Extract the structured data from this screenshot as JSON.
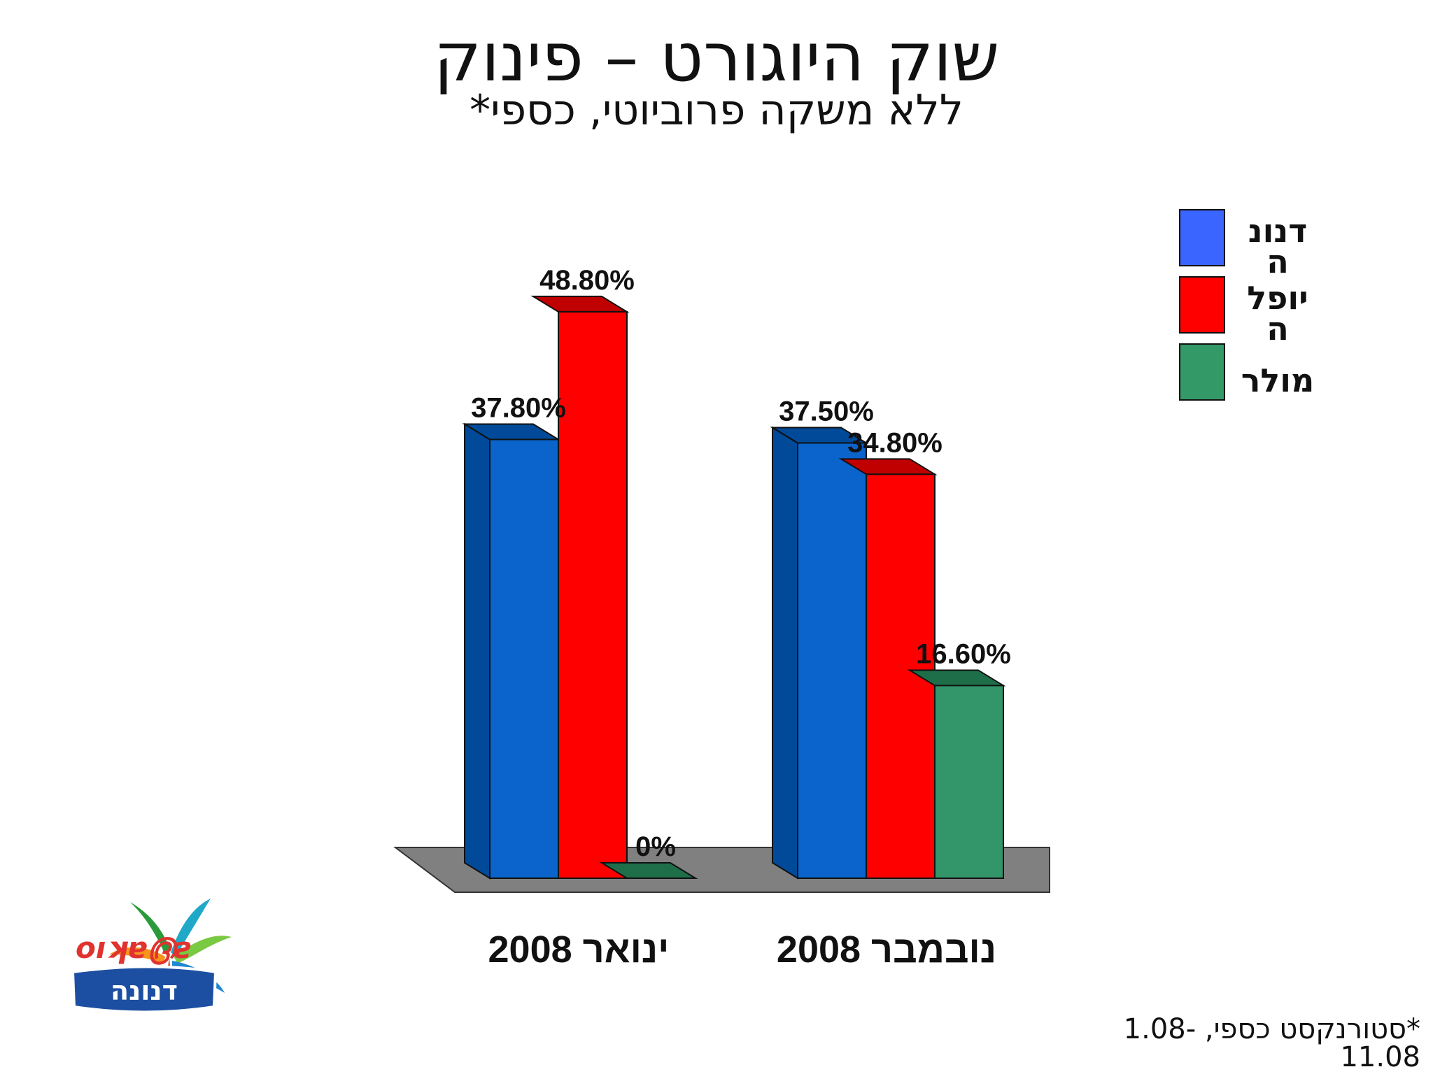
{
  "title": "שוק היוגורט – פינוק",
  "subtitle": "ללא משקה פרוביוטי, כספי*",
  "footnote": "*סטורנקסט כספי, 1.08-11.08",
  "logo_text": "שטראוס דנונה",
  "colors": {
    "danone_front": "#0a64cc",
    "danone_side": "#004a99",
    "yoplait_front": "#ff0000",
    "yoplait_side": "#c00000",
    "muller_front": "#33966a",
    "muller_side": "#1f6e4a",
    "floor": "#808080",
    "legend_danone": "#3a66ff",
    "legend_yoplait": "#ff0000",
    "legend_muller": "#339966"
  },
  "chart_data": {
    "type": "bar",
    "categories": [
      "ינואר 2008",
      "נובמבר 2008"
    ],
    "series": [
      {
        "name": "דנונה",
        "values": [
          37.8,
          37.5
        ],
        "labels": [
          "37.80%",
          "37.50%"
        ]
      },
      {
        "name": "יופלה",
        "values": [
          48.8,
          34.8
        ],
        "labels": [
          "48.80%",
          "34.80%"
        ]
      },
      {
        "name": "מולר",
        "values": [
          0,
          16.6
        ],
        "labels": [
          "0%",
          "16.60%"
        ]
      }
    ],
    "legend": {
      "placement": "top-right",
      "entries": [
        {
          "name": "דנונה",
          "lines": [
            "דנונ",
            "ה"
          ]
        },
        {
          "name": "יופלה",
          "lines": [
            "יופל",
            "ה"
          ]
        },
        {
          "name": "מולר",
          "lines": [
            "מולר"
          ]
        }
      ]
    },
    "ylim": [
      0,
      50
    ],
    "grid": false,
    "style": "3d-clustered-column"
  }
}
